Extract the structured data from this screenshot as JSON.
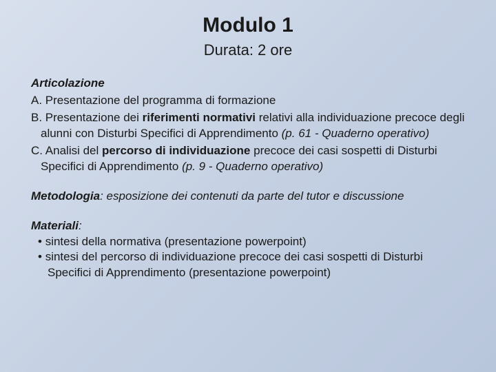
{
  "title": "Modulo 1",
  "subtitle": "Durata: 2 ore",
  "articolazione": {
    "label": "Articolazione",
    "items": {
      "a": {
        "prefix": "A. ",
        "text": "Presentazione del programma di formazione"
      },
      "b": {
        "prefix": "B. ",
        "pre": "Presentazione dei ",
        "bold": "riferimenti normativi",
        "post": " relativi alla individuazione precoce degli alunni con Disturbi Specifici di Apprendimento ",
        "italic": "(p. 61 - Quaderno operativo)"
      },
      "c": {
        "prefix": "C. ",
        "pre": "Analisi del ",
        "bold": "percorso di individuazione",
        "post": " precoce dei casi sospetti di Disturbi Specifici di Apprendimento ",
        "italic": "(p. 9 - Quaderno operativo)"
      }
    }
  },
  "metodologia": {
    "label": "Metodologia",
    "text": ": esposizione dei contenuti da parte del tutor e discussione"
  },
  "materiali": {
    "label": "Materiali",
    "colon": ":",
    "bullets": [
      "sintesi della normativa (presentazione powerpoint)",
      "sintesi del percorso di individuazione precoce dei casi sospetti di Disturbi Specifici di Apprendimento (presentazione powerpoint)"
    ]
  },
  "colors": {
    "background_start": "#d8e0ed",
    "background_end": "#b8c6dc",
    "text": "#1a1a1a"
  },
  "typography": {
    "title_fontsize": 30,
    "subtitle_fontsize": 22,
    "body_fontsize": 17,
    "font_family": "Arial"
  }
}
